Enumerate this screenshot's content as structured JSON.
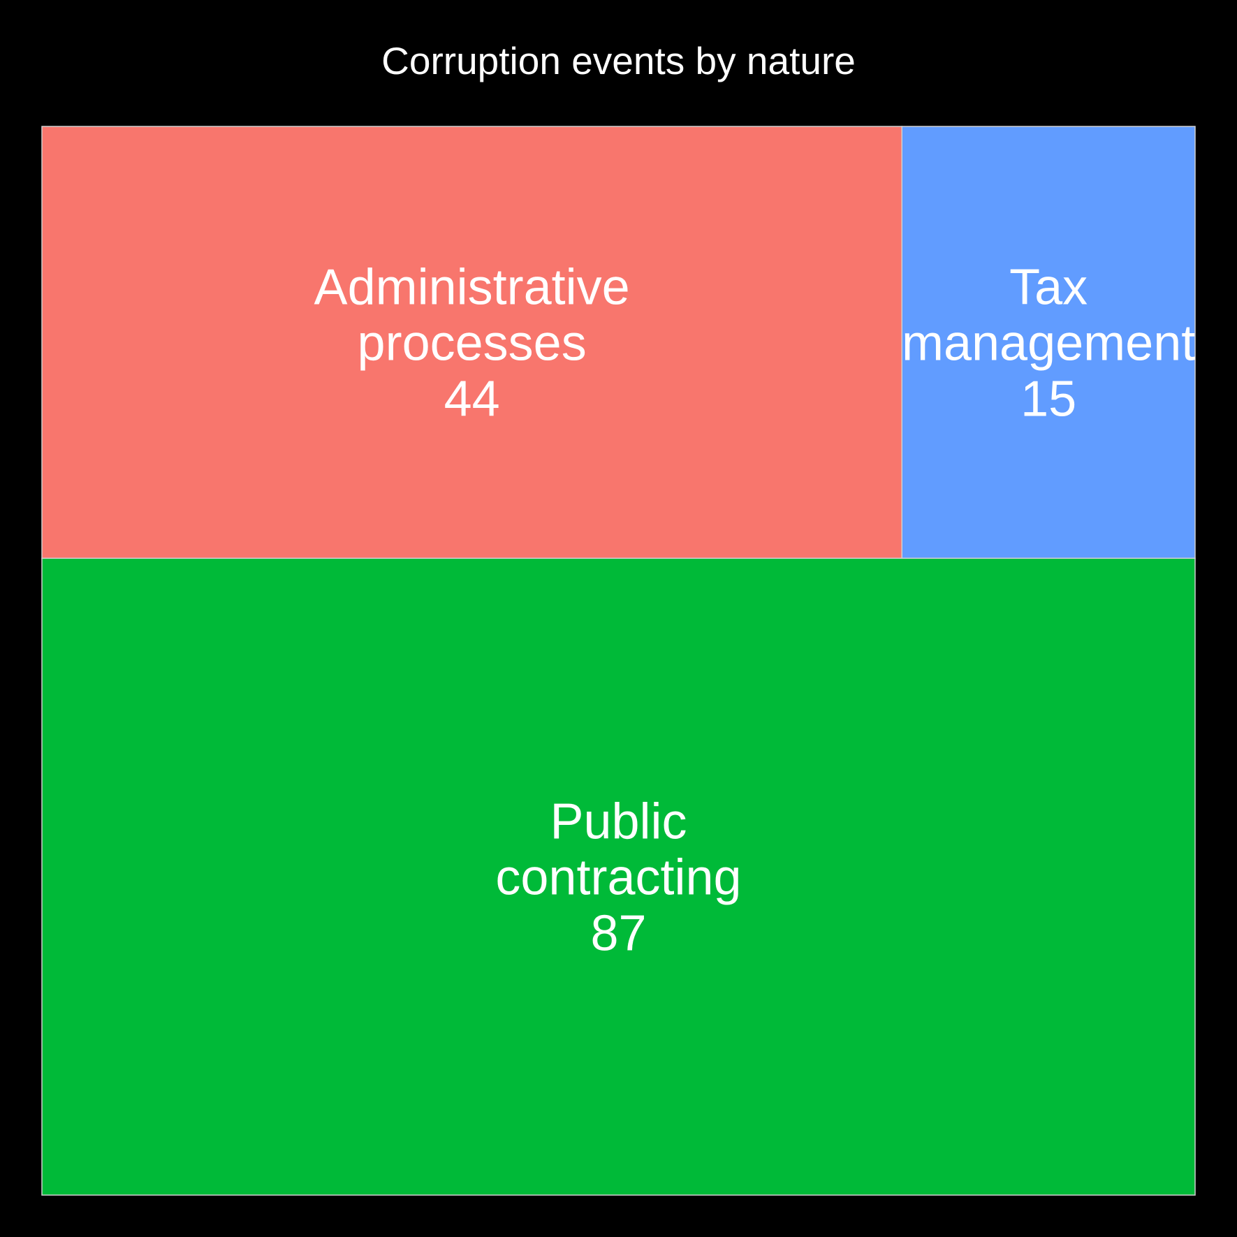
{
  "chart_data": {
    "type": "treemap",
    "title": "Corruption events by nature",
    "items": [
      {
        "label": [
          "Administrative",
          "processes"
        ],
        "value": 44,
        "color": "#F8766D"
      },
      {
        "label": [
          "Tax",
          "management"
        ],
        "value": 15,
        "color": "#619CFF"
      },
      {
        "label": [
          "Public",
          "contracting"
        ],
        "value": 87,
        "color": "#00BA38"
      }
    ]
  }
}
